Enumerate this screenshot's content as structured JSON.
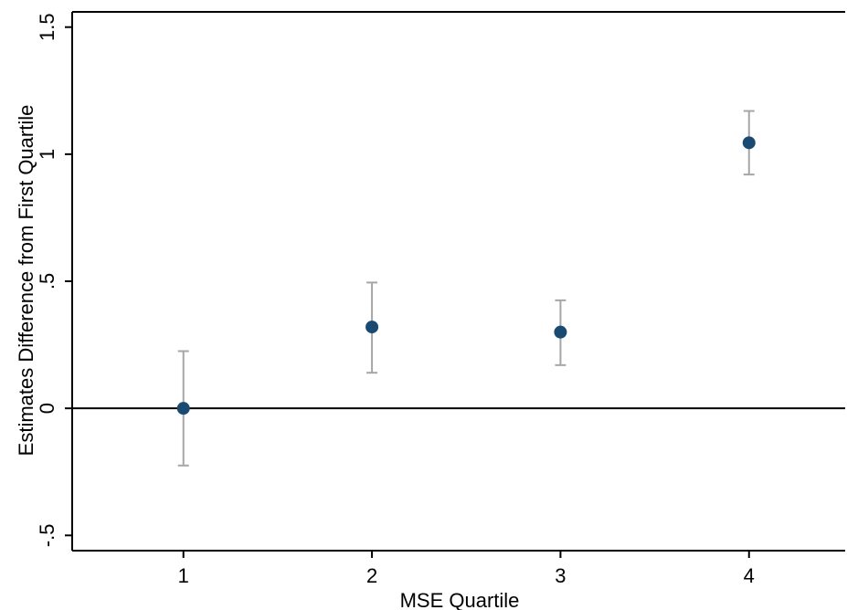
{
  "chart_data": {
    "type": "scatter",
    "title": "",
    "xlabel": "MSE Quartile",
    "ylabel": "Estimates Difference from First Quartile",
    "x_ticks": [
      {
        "value": 1,
        "label": "1"
      },
      {
        "value": 2,
        "label": "2"
      },
      {
        "value": 3,
        "label": "3"
      },
      {
        "value": 4,
        "label": "4"
      }
    ],
    "y_ticks": [
      {
        "value": -0.5,
        "label": "-.5"
      },
      {
        "value": 0,
        "label": "0"
      },
      {
        "value": 0.5,
        "label": ".5"
      },
      {
        "value": 1,
        "label": "1"
      },
      {
        "value": 1.5,
        "label": "1.5"
      }
    ],
    "xlim": [
      0.41,
      4.51
    ],
    "ylim": [
      -0.56,
      1.56
    ],
    "reference_line_y": 0,
    "grid": false,
    "legend": "none",
    "points": [
      {
        "x": 1,
        "y": 0.0,
        "ci_low": -0.225,
        "ci_high": 0.225
      },
      {
        "x": 2,
        "y": 0.32,
        "ci_low": 0.14,
        "ci_high": 0.495
      },
      {
        "x": 3,
        "y": 0.3,
        "ci_low": 0.17,
        "ci_high": 0.425
      },
      {
        "x": 4,
        "y": 1.045,
        "ci_low": 0.92,
        "ci_high": 1.17
      }
    ],
    "colors": {
      "point": "#1a4a72",
      "error_bar": "#a6a6a6",
      "axis": "#000000"
    }
  }
}
